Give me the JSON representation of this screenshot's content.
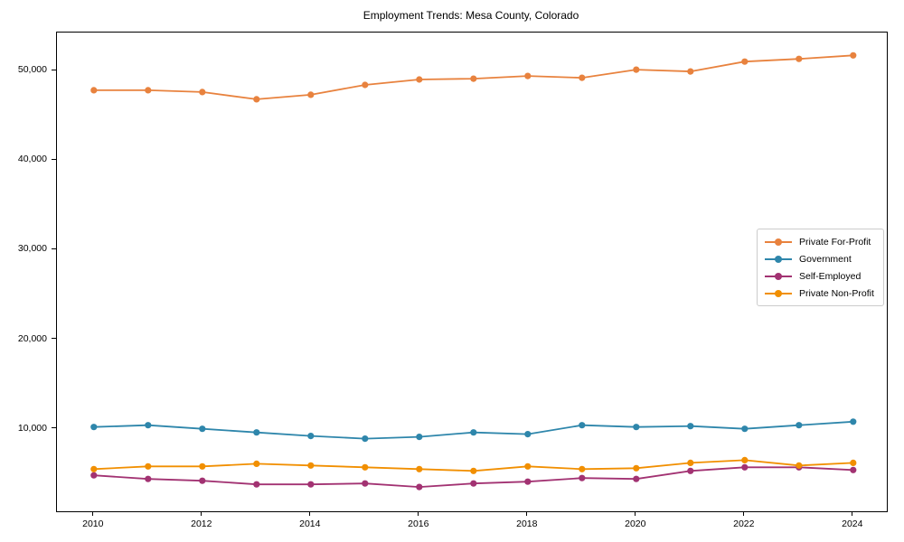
{
  "title": "Employment Trends: Mesa County, Colorado",
  "chart_data": {
    "type": "line",
    "title": "Employment Trends: Mesa County, Colorado",
    "x": [
      2010,
      2011,
      2012,
      2013,
      2014,
      2015,
      2016,
      2017,
      2018,
      2019,
      2020,
      2021,
      2022,
      2023,
      2024
    ],
    "series": [
      {
        "name": "Private For-Profit",
        "color": "#E8823E",
        "values": [
          47800,
          47800,
          47600,
          46800,
          47300,
          48400,
          49000,
          49100,
          49400,
          49200,
          50100,
          49900,
          51000,
          51300,
          51700
        ]
      },
      {
        "name": "Government",
        "color": "#2E86AB",
        "values": [
          10200,
          10400,
          10000,
          9600,
          9200,
          8900,
          9100,
          9600,
          9400,
          10400,
          10200,
          10300,
          10000,
          10400,
          10800
        ]
      },
      {
        "name": "Self-Employed",
        "color": "#A23272",
        "values": [
          4800,
          4400,
          4200,
          3800,
          3800,
          3900,
          3500,
          3900,
          4100,
          4500,
          4400,
          5300,
          5700,
          5700,
          5400
        ]
      },
      {
        "name": "Private Non-Profit",
        "color": "#F18F01",
        "values": [
          5500,
          5800,
          5800,
          6100,
          5900,
          5700,
          5500,
          5300,
          5800,
          5500,
          5600,
          6200,
          6500,
          5900,
          6200
        ]
      }
    ],
    "x_ticks": [
      2010,
      2012,
      2014,
      2016,
      2018,
      2020,
      2022,
      2024
    ],
    "x_tick_labels": [
      "2010",
      "2012",
      "2014",
      "2016",
      "2018",
      "2020",
      "2022",
      "2024"
    ],
    "y_ticks": [
      10000,
      20000,
      30000,
      40000,
      50000
    ],
    "y_tick_labels": [
      "10,000",
      "20,000",
      "30,000",
      "40,000",
      "50,000"
    ],
    "xlim": [
      2009.32,
      2024.62
    ],
    "ylim": [
      790,
      54250
    ],
    "xlabel": "",
    "ylabel": "",
    "grid": false,
    "legend_position": "center right",
    "marker": "o"
  }
}
